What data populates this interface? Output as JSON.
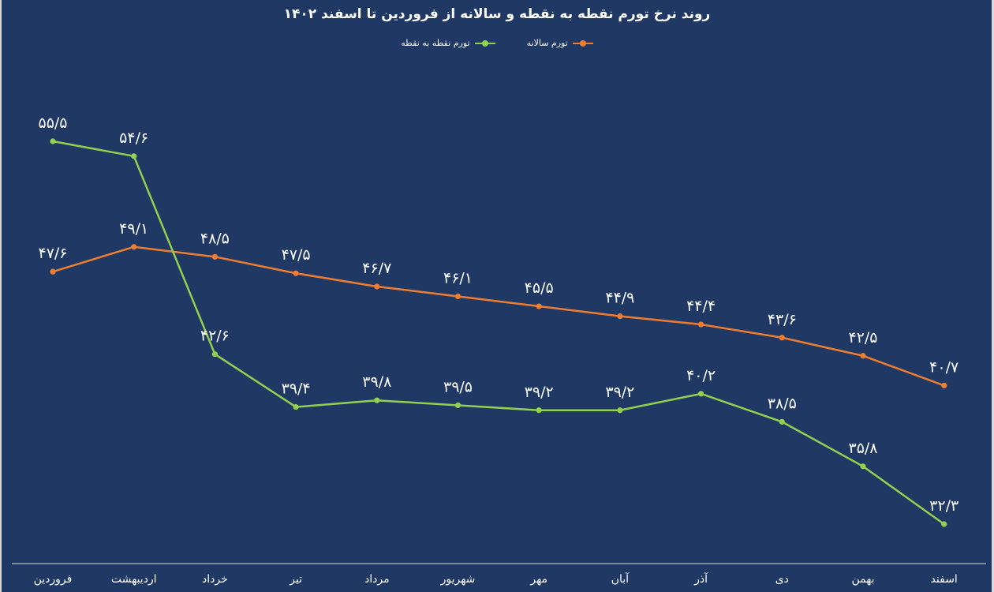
{
  "chart_data": {
    "type": "line",
    "title": "روند نرخ تورم نقطه به نقطه و سالانه از فروردین تا اسفند ۱۴۰۲",
    "xlabel": "",
    "ylabel": "",
    "ylim": [
      30,
      57
    ],
    "grid": false,
    "legend_position": "top",
    "categories": [
      "فروردین",
      "اردیبهشت",
      "خرداد",
      "تیر",
      "مرداد",
      "شهریور",
      "مهر",
      "آبان",
      "آذر",
      "دی",
      "بهمن",
      "اسفند"
    ],
    "series": [
      {
        "name": "تورم سالانه",
        "color": "#ed7d31",
        "values": [
          47.6,
          49.1,
          48.5,
          47.5,
          46.7,
          46.1,
          45.5,
          44.9,
          44.4,
          43.6,
          42.5,
          40.7
        ],
        "labels": [
          "۴۷/۶",
          "۴۹/۱",
          "۴۸/۵",
          "۴۷/۵",
          "۴۶/۷",
          "۴۶/۱",
          "۴۵/۵",
          "۴۴/۹",
          "۴۴/۴",
          "۴۳/۶",
          "۴۲/۵",
          "۴۰/۷"
        ]
      },
      {
        "name": "تورم نقطه به نقطه",
        "color": "#92d050",
        "values": [
          55.5,
          54.6,
          42.6,
          39.4,
          39.8,
          39.5,
          39.2,
          39.2,
          40.2,
          38.5,
          35.8,
          32.3
        ],
        "labels": [
          "۵۵/۵",
          "۵۴/۶",
          "۴۲/۶",
          "۳۹/۴",
          "۳۹/۸",
          "۳۹/۵",
          "۳۹/۲",
          "۳۹/۲",
          "۴۰/۲",
          "۳۸/۵",
          "۳۵/۸",
          "۳۲/۳"
        ]
      }
    ]
  }
}
